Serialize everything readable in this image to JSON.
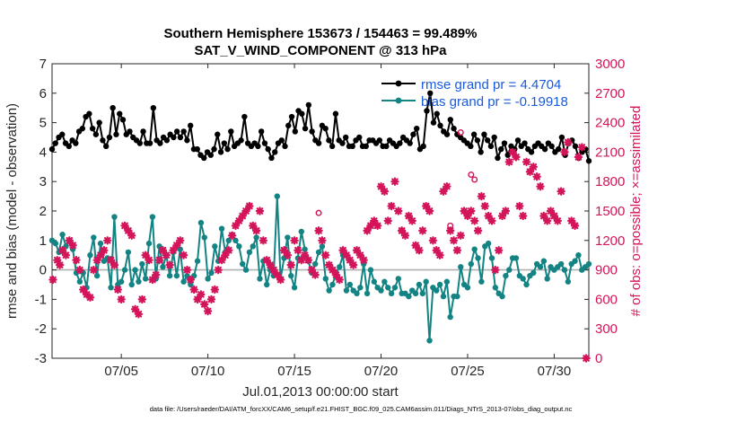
{
  "chart_data": {
    "type": "line",
    "title_line1": "Southern Hemisphere 153673 / 154463 = 99.489%",
    "title_line2": "SAT_V_WIND_COMPONENT @ 313 hPa",
    "xlabel": "Jul.01,2013 00:00:00 start",
    "ylabel_left": "rmse and bias (model - observation)",
    "ylabel_right": "# of obs: o=possible; ×=assimilated",
    "footnote": "data file: /Users/raeder/DAI/ATM_forcXX/CAM6_setup/f.e21.FHIST_BGC.f09_025.CAM6assim.011/Diags_NTrS_2013-07/obs_diag_output.nc",
    "xlim": [
      1,
      32
    ],
    "ylim_left": [
      -3,
      7
    ],
    "ylim_right": [
      0,
      3000
    ],
    "x_ticks": [
      5,
      10,
      15,
      20,
      25,
      30
    ],
    "x_tick_labels": [
      "07/05",
      "07/10",
      "07/15",
      "07/20",
      "07/25",
      "07/30"
    ],
    "y_ticks_left": [
      -3,
      -2,
      -1,
      0,
      1,
      2,
      3,
      4,
      5,
      6,
      7
    ],
    "y_tick_labels_left": [
      "-3",
      "-2",
      "-1",
      "0",
      "1",
      "2",
      "3",
      "4",
      "5",
      "6",
      "7"
    ],
    "y_ticks_right": [
      0,
      300,
      600,
      900,
      1200,
      1500,
      1800,
      2100,
      2400,
      2700,
      3000
    ],
    "y_tick_labels_right": [
      "0",
      "300",
      "600",
      "900",
      "1200",
      "1500",
      "1800",
      "2100",
      "2400",
      "2700",
      "3000"
    ],
    "zero_line": 0,
    "colors": {
      "rmse": "#000000",
      "bias": "#138383",
      "obs": "#d4145a",
      "zero_line": "#b0b0b0",
      "legend_text": "#1a5adc",
      "axis": "#262626"
    },
    "series": [
      {
        "name": "rmse grand pr = 4.4704",
        "axis": "left",
        "color": "#000000",
        "marker": "circle",
        "y": [
          4.1,
          4.3,
          4.5,
          4.6,
          4.3,
          4.2,
          4.4,
          4.3,
          4.7,
          4.8,
          5.2,
          5.3,
          4.8,
          4.6,
          5.0,
          4.4,
          4.2,
          4.5,
          5.5,
          4.6,
          5.3,
          5.1,
          4.6,
          4.7,
          4.5,
          4.4,
          4.3,
          4.7,
          4.3,
          4.3,
          5.5,
          4.4,
          4.3,
          4.5,
          4.4,
          4.6,
          4.5,
          4.7,
          4.5,
          4.7,
          4.4,
          4.9,
          4.1,
          4.1,
          3.9,
          3.8,
          4.0,
          3.9,
          4.1,
          4.6,
          4.0,
          4.3,
          4.1,
          4.7,
          4.2,
          4.3,
          4.4,
          5.2,
          4.3,
          4.2,
          4.3,
          4.2,
          4.7,
          4.3,
          4.1,
          3.8,
          4.0,
          4.3,
          4.4,
          4.2,
          4.9,
          5.2,
          4.7,
          5.4,
          5.3,
          4.8,
          5.6,
          4.7,
          4.4,
          4.3,
          4.9,
          4.8,
          4.4,
          4.2,
          5.3,
          4.4,
          4.3,
          4.5,
          4.2,
          4.2,
          4.4,
          4.5,
          4.2,
          4.2,
          4.4,
          4.4,
          4.3,
          4.4,
          4.2,
          4.2,
          4.4,
          4.3,
          4.2,
          4.3,
          4.5,
          4.4,
          4.3,
          4.6,
          4.8,
          4.1,
          4.2,
          5.4,
          6.0,
          5.0,
          5.3,
          4.9,
          4.7,
          4.6,
          5.1,
          4.8,
          4.6,
          4.5,
          4.4,
          4.3,
          4.2,
          4.6,
          4.4,
          4.0,
          4.6,
          4.4,
          4.2,
          4.5,
          3.8,
          4.1,
          4.3,
          3.9,
          4.2,
          4.1,
          4.4,
          4.2,
          4.3,
          4.1,
          4.0,
          4.2,
          4.3,
          4.2,
          4.1,
          4.3,
          4.2,
          4.0,
          4.1,
          4.5,
          3.9,
          4.3,
          4.4,
          4.2,
          3.8,
          4.0,
          4.1,
          3.7
        ]
      },
      {
        "name": "bias grand pr = -0.19918",
        "axis": "left",
        "color": "#138383",
        "marker": "circle",
        "y": [
          1.0,
          0.9,
          0.6,
          1.2,
          0.8,
          1.0,
          0.7,
          -0.1,
          -0.4,
          -0.1,
          -0.6,
          0.5,
          1.1,
          -0.2,
          0.9,
          0.3,
          0.4,
          -0.6,
          1.8,
          -0.5,
          -0.4,
          0.0,
          0.6,
          -0.5,
          0.0,
          -0.4,
          0.2,
          -0.3,
          0.9,
          1.8,
          -0.3,
          0.8,
          0.1,
          0.5,
          -0.2,
          0.6,
          -0.2,
          0.7,
          -0.4,
          -0.2,
          -0.5,
          -0.2,
          0.3,
          1.6,
          1.1,
          -0.3,
          -0.1,
          0.8,
          0.3,
          1.4,
          0.6,
          1.0,
          1.2,
          1.0,
          0.8,
          0.2,
          0.0,
          0.6,
          0.8,
          1.1,
          -0.3,
          0.3,
          -0.5,
          0.0,
          -0.2,
          2.5,
          -0.3,
          0.4,
          1.1,
          -0.2,
          -0.6,
          0.4,
          1.3,
          0.7,
          0.3,
          -0.1,
          0.2,
          0.6,
          0.8,
          -0.3,
          -0.7,
          -0.5,
          -0.1,
          0.1,
          0.5,
          -0.7,
          -0.5,
          -0.7,
          -0.8,
          -0.6,
          0.2,
          -0.8,
          0.0,
          -0.4,
          -0.6,
          -0.7,
          -0.4,
          -0.6,
          -0.8,
          -0.6,
          -0.3,
          -0.8,
          -0.8,
          -0.9,
          -0.7,
          -0.8,
          -0.5,
          -0.8,
          -0.4,
          -2.4,
          -0.6,
          -0.7,
          -0.5,
          -0.9,
          -0.4,
          -1.6,
          -0.9,
          -0.9,
          0.1,
          -0.5,
          -0.6,
          0.2,
          0.7,
          0.4,
          -0.4,
          0.8,
          0.9,
          0.4,
          -0.6,
          -0.8,
          -0.9,
          -0.2,
          0.0,
          0.4,
          0.4,
          -0.2,
          -0.3,
          -0.5,
          -0.2,
          -0.1,
          0.2,
          0.1,
          0.3,
          -0.3,
          0.1,
          0.0,
          0.1,
          0.2,
          0.0,
          -0.4,
          0.2,
          0.3,
          0.5,
          0.0,
          0.1,
          0.2
        ]
      },
      {
        "name": "# of obs assimilated",
        "axis": "right",
        "color": "#d4145a",
        "marker": "asterisk",
        "points": [
          [
            1.05,
            800
          ],
          [
            1.3,
            1000
          ],
          [
            1.45,
            950
          ],
          [
            1.6,
            1100
          ],
          [
            1.8,
            1050
          ],
          [
            2.0,
            1200
          ],
          [
            2.2,
            1150
          ],
          [
            2.4,
            1000
          ],
          [
            2.6,
            900
          ],
          [
            2.8,
            700
          ],
          [
            3.0,
            650
          ],
          [
            3.2,
            620
          ],
          [
            3.4,
            900
          ],
          [
            3.6,
            1000
          ],
          [
            3.8,
            1050
          ],
          [
            4.0,
            1100
          ],
          [
            4.2,
            1200
          ],
          [
            4.4,
            1000
          ],
          [
            4.6,
            950
          ],
          [
            4.8,
            700
          ],
          [
            5.0,
            600
          ],
          [
            5.2,
            1350
          ],
          [
            5.4,
            1300
          ],
          [
            5.6,
            1250
          ],
          [
            5.8,
            500
          ],
          [
            6.0,
            450
          ],
          [
            6.2,
            600
          ],
          [
            6.4,
            1050
          ],
          [
            6.6,
            1000
          ],
          [
            6.8,
            800
          ],
          [
            7.0,
            850
          ],
          [
            7.2,
            1000
          ],
          [
            7.4,
            1100
          ],
          [
            7.6,
            1050
          ],
          [
            7.8,
            950
          ],
          [
            8.0,
            1100
          ],
          [
            8.2,
            1150
          ],
          [
            8.4,
            1200
          ],
          [
            8.6,
            1050
          ],
          [
            8.8,
            900
          ],
          [
            9.0,
            800
          ],
          [
            9.2,
            700
          ],
          [
            9.4,
            600
          ],
          [
            9.6,
            650
          ],
          [
            9.8,
            550
          ],
          [
            10.0,
            480
          ],
          [
            10.2,
            600
          ],
          [
            10.4,
            700
          ],
          [
            10.6,
            900
          ],
          [
            10.8,
            1000
          ],
          [
            11.0,
            1050
          ],
          [
            11.2,
            1100
          ],
          [
            11.4,
            1250
          ],
          [
            11.6,
            1350
          ],
          [
            11.8,
            1400
          ],
          [
            12.0,
            1450
          ],
          [
            12.2,
            1500
          ],
          [
            12.4,
            1550
          ],
          [
            12.6,
            1350
          ],
          [
            12.8,
            1300
          ],
          [
            13.0,
            1500
          ],
          [
            13.2,
            1200
          ],
          [
            13.4,
            1000
          ],
          [
            13.6,
            950
          ],
          [
            13.8,
            900
          ],
          [
            14.0,
            850
          ],
          [
            14.2,
            800
          ],
          [
            14.4,
            1100
          ],
          [
            14.6,
            1050
          ],
          [
            14.8,
            950
          ],
          [
            15.0,
            1200
          ],
          [
            15.2,
            1100
          ],
          [
            15.4,
            1000
          ],
          [
            15.6,
            1050
          ],
          [
            15.8,
            1000
          ],
          [
            16.0,
            900
          ],
          [
            16.2,
            850
          ],
          [
            16.4,
            1300
          ],
          [
            16.6,
            1200
          ],
          [
            16.8,
            1050
          ],
          [
            17.0,
            950
          ],
          [
            17.2,
            900
          ],
          [
            17.4,
            850
          ],
          [
            17.6,
            800
          ],
          [
            17.8,
            1100
          ],
          [
            18.0,
            1050
          ],
          [
            18.2,
            1000
          ],
          [
            18.4,
            950
          ],
          [
            18.6,
            1100
          ],
          [
            18.8,
            1050
          ],
          [
            19.0,
            1000
          ],
          [
            19.2,
            1300
          ],
          [
            19.4,
            1350
          ],
          [
            19.6,
            1400
          ],
          [
            19.8,
            1350
          ],
          [
            20.0,
            1750
          ],
          [
            20.2,
            1700
          ],
          [
            20.4,
            1400
          ],
          [
            20.6,
            1550
          ],
          [
            20.8,
            1800
          ],
          [
            21.0,
            1500
          ],
          [
            21.2,
            1300
          ],
          [
            21.4,
            1250
          ],
          [
            21.6,
            1450
          ],
          [
            21.8,
            1400
          ],
          [
            22.0,
            1150
          ],
          [
            22.2,
            1100
          ],
          [
            22.4,
            1300
          ],
          [
            22.6,
            1550
          ],
          [
            22.8,
            1500
          ],
          [
            23.0,
            1200
          ],
          [
            23.2,
            1100
          ],
          [
            23.4,
            1050
          ],
          [
            23.6,
            1700
          ],
          [
            23.8,
            1750
          ],
          [
            24.0,
            1300
          ],
          [
            24.2,
            1200
          ],
          [
            24.4,
            1100
          ],
          [
            24.6,
            1250
          ],
          [
            24.8,
            1500
          ],
          [
            25.0,
            1450
          ],
          [
            25.2,
            1500
          ],
          [
            25.4,
            1400
          ],
          [
            25.6,
            1300
          ],
          [
            25.8,
            1650
          ],
          [
            26.0,
            1550
          ],
          [
            26.2,
            1450
          ],
          [
            26.4,
            1400
          ],
          [
            26.6,
            900
          ],
          [
            26.8,
            1100
          ],
          [
            27.0,
            1450
          ],
          [
            27.2,
            1500
          ],
          [
            27.4,
            2000
          ],
          [
            27.6,
            2100
          ],
          [
            27.8,
            2050
          ],
          [
            28.0,
            1550
          ],
          [
            28.2,
            1450
          ],
          [
            28.4,
            2000
          ],
          [
            28.6,
            1900
          ],
          [
            28.8,
            1950
          ],
          [
            29.0,
            1850
          ],
          [
            29.2,
            1750
          ],
          [
            29.4,
            1450
          ],
          [
            29.6,
            1400
          ],
          [
            29.8,
            1500
          ],
          [
            30.0,
            1450
          ],
          [
            30.2,
            1400
          ],
          [
            30.4,
            1700
          ],
          [
            30.6,
            2100
          ],
          [
            30.8,
            2200
          ],
          [
            31.0,
            1400
          ],
          [
            31.2,
            1350
          ],
          [
            31.4,
            2050
          ],
          [
            31.6,
            2150
          ],
          [
            31.85,
            0
          ]
        ]
      },
      {
        "name": "# of obs possible",
        "axis": "right",
        "color": "#d4145a",
        "marker": "open-circle",
        "points": [
          [
            16.4,
            1480
          ],
          [
            21.2,
            1300
          ],
          [
            24.0,
            1350
          ],
          [
            24.6,
            2300
          ],
          [
            25.2,
            1870
          ],
          [
            25.4,
            1820
          ]
        ]
      }
    ],
    "legend": [
      {
        "label": "rmse grand pr = 4.4704",
        "color": "#000000"
      },
      {
        "label": "bias grand pr = -0.19918",
        "color": "#138383"
      }
    ],
    "legend_position": "top-right"
  }
}
